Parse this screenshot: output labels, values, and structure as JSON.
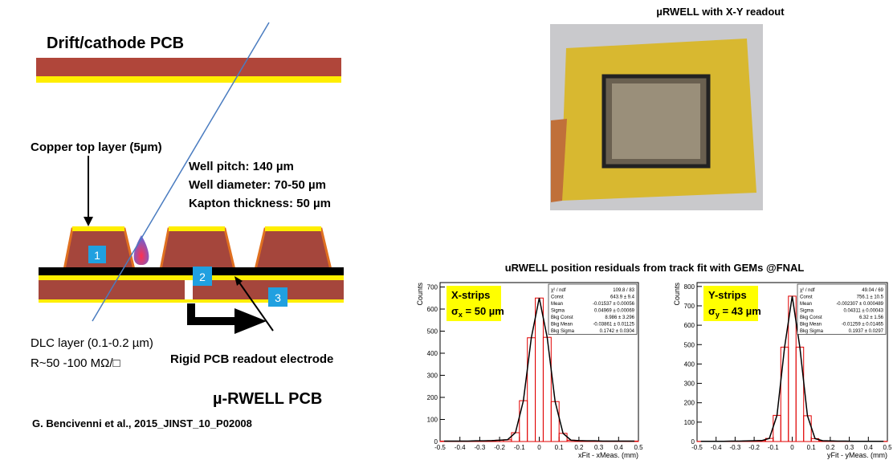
{
  "left": {
    "title": "Drift/cathode PCB",
    "copper_label": "Copper top layer (5µm)",
    "specs": [
      "Well pitch: 140 µm",
      "Well diameter: 70-50 µm",
      "Kapton thickness:  50 µm"
    ],
    "markers": [
      "1",
      "2",
      "3"
    ],
    "dlc_label": [
      "DLC  layer (0.1-0.2 µm)",
      "R~50 -100  MΩ/□"
    ],
    "readout_label": "Rigid PCB readout electrode",
    "pcb_label": "µ-RWELL  PCB",
    "citation": "G. Bencivenni et al., 2015_JINST_10_P02008"
  },
  "photo": {
    "title": "µRWELL with X-Y readout"
  },
  "residuals": {
    "title": "uRWELL position residuals from track fit with GEMs @FNAL",
    "plots": [
      {
        "type": "histogram",
        "ylabel": "Counts",
        "xlabel": "xFit - xMeas. (mm)",
        "box": {
          "name": "X-strips",
          "resolution": [
            "σ",
            "x",
            " = 50 µm"
          ]
        },
        "stats": [
          [
            "χ² / ndf",
            "109.8 / 83"
          ],
          [
            "Const",
            "643.9 ± 9.4"
          ],
          [
            "Mean",
            "-0.01537 ± 0.00056"
          ],
          [
            "Sigma",
            "0.04969 ± 0.00069"
          ],
          [
            "Bkg Const",
            "8.986 ± 3.296"
          ],
          [
            "Bkg Mean",
            "-0.03861 ± 0.01125"
          ],
          [
            "Bkg Sigma",
            "0.1742 ± 0.0304"
          ]
        ],
        "bins": [
          -0.5,
          -0.46,
          -0.42,
          -0.38,
          -0.34,
          -0.3,
          -0.26,
          -0.22,
          -0.18,
          -0.14,
          -0.1,
          -0.06,
          -0.02,
          0.02,
          0.06,
          0.1,
          0.14,
          0.18,
          0.22,
          0.26,
          0.3,
          0.34,
          0.38,
          0.42,
          0.46,
          0.5
        ],
        "values": [
          2,
          2,
          2,
          2,
          3,
          3,
          4,
          6,
          8,
          40,
          185,
          470,
          650,
          472,
          181,
          37,
          6,
          4,
          3,
          3,
          2,
          2,
          2,
          2,
          2
        ],
        "color": "#e00000",
        "xlim": [
          -0.5,
          0.5
        ],
        "xticks": [
          -0.5,
          -0.4,
          -0.3,
          -0.2,
          -0.1,
          0,
          0.1,
          0.2,
          0.3,
          0.4,
          0.5
        ],
        "ylim": [
          0,
          720
        ],
        "yticks": [
          0,
          100,
          200,
          300,
          400,
          500,
          600,
          700
        ]
      },
      {
        "type": "histogram",
        "ylabel": "Counts",
        "xlabel": "yFit - yMeas. (mm)",
        "box": {
          "name": "Y-strips",
          "resolution": [
            "σ",
            "y",
            " = 43 µm"
          ]
        },
        "stats": [
          [
            "χ² / ndf",
            "49.04 / 69"
          ],
          [
            "Const",
            "756.1 ± 10.5"
          ],
          [
            "Mean",
            "-0.002307 ± 0.000489"
          ],
          [
            "Sigma",
            "0.04311 ± 0.00043"
          ],
          [
            "Bkg Const",
            "6.32 ± 1.56"
          ],
          [
            "Bkg Mean",
            "-0.01259 ± 0.01465"
          ],
          [
            "Bkg Sigma",
            "0.1937 ± 0.0297"
          ]
        ],
        "bins": [
          -0.5,
          -0.46,
          -0.42,
          -0.38,
          -0.34,
          -0.3,
          -0.26,
          -0.22,
          -0.18,
          -0.14,
          -0.1,
          -0.06,
          -0.02,
          0.02,
          0.06,
          0.1,
          0.14,
          0.18,
          0.22,
          0.26,
          0.3,
          0.34,
          0.38,
          0.42,
          0.46,
          0.5
        ],
        "values": [
          1,
          1,
          1,
          1,
          2,
          2,
          3,
          4,
          5,
          16,
          135,
          487,
          750,
          487,
          133,
          15,
          4,
          3,
          2,
          2,
          1,
          1,
          1,
          1,
          1
        ],
        "color": "#e00000",
        "xlim": [
          -0.5,
          0.5
        ],
        "xticks": [
          -0.5,
          -0.4,
          -0.3,
          -0.2,
          -0.1,
          0,
          0.1,
          0.2,
          0.3,
          0.4,
          0.5
        ],
        "ylim": [
          0,
          820
        ],
        "yticks": [
          0,
          100,
          200,
          300,
          400,
          500,
          600,
          700,
          800
        ]
      }
    ]
  }
}
